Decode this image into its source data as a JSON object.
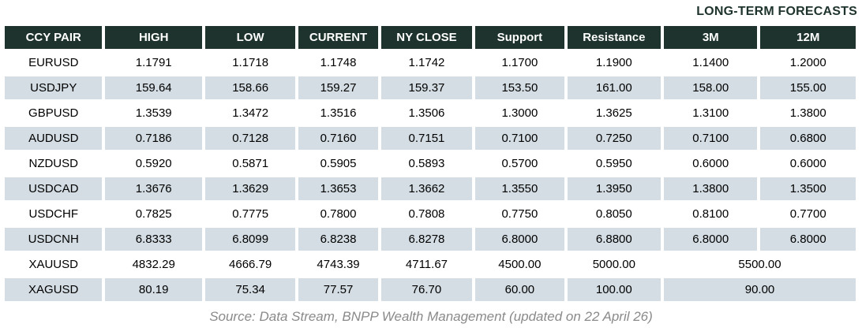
{
  "title": "LONG-TERM FORECASTS",
  "colors": {
    "header_bg": "#1e332d",
    "header_text": "#ffffff",
    "stripe_bg": "#d3dde3",
    "title_text": "#1e332d",
    "footer_text": "#8a8a8a"
  },
  "table": {
    "columns": [
      "CCY PAIR",
      "HIGH",
      "LOW",
      "CURRENT",
      "NY CLOSE",
      "Support",
      "Resistance",
      "3M",
      "12M"
    ],
    "rows": [
      {
        "pair": "EURUSD",
        "values": [
          "1.1791",
          "1.1718",
          "1.1748",
          "1.1742",
          "1.1700",
          "1.1900",
          "1.1400",
          "1.2000"
        ]
      },
      {
        "pair": "USDJPY",
        "values": [
          "159.64",
          "158.66",
          "159.27",
          "159.37",
          "153.50",
          "161.00",
          "158.00",
          "155.00"
        ]
      },
      {
        "pair": "GBPUSD",
        "values": [
          "1.3539",
          "1.3472",
          "1.3516",
          "1.3506",
          "1.3000",
          "1.3625",
          "1.3100",
          "1.3800"
        ]
      },
      {
        "pair": "AUDUSD",
        "values": [
          "0.7186",
          "0.7128",
          "0.7160",
          "0.7151",
          "0.7100",
          "0.7250",
          "0.7100",
          "0.6800"
        ]
      },
      {
        "pair": "NZDUSD",
        "values": [
          "0.5920",
          "0.5871",
          "0.5905",
          "0.5893",
          "0.5700",
          "0.5950",
          "0.6000",
          "0.6000"
        ]
      },
      {
        "pair": "USDCAD",
        "values": [
          "1.3676",
          "1.3629",
          "1.3653",
          "1.3662",
          "1.3550",
          "1.3950",
          "1.3800",
          "1.3500"
        ]
      },
      {
        "pair": "USDCHF",
        "values": [
          "0.7825",
          "0.7775",
          "0.7800",
          "0.7808",
          "0.7750",
          "0.8050",
          "0.8100",
          "0.7700"
        ]
      },
      {
        "pair": "USDCNH",
        "values": [
          "6.8333",
          "6.8099",
          "6.8238",
          "6.8278",
          "6.8000",
          "6.8800",
          "6.8000",
          "6.8000"
        ]
      },
      {
        "pair": "XAUUSD",
        "values": [
          "4832.29",
          "4666.79",
          "4743.39",
          "4711.67",
          "4500.00",
          "5000.00",
          {
            "text": "5500.00",
            "span": 2
          }
        ]
      },
      {
        "pair": "XAGUSD",
        "values": [
          "80.19",
          "75.34",
          "77.57",
          "76.70",
          "60.00",
          "100.00",
          {
            "text": "90.00",
            "span": 2
          }
        ]
      }
    ]
  },
  "footer": "Source: Data Stream, BNPP Wealth Management (updated on 22 April 26)"
}
